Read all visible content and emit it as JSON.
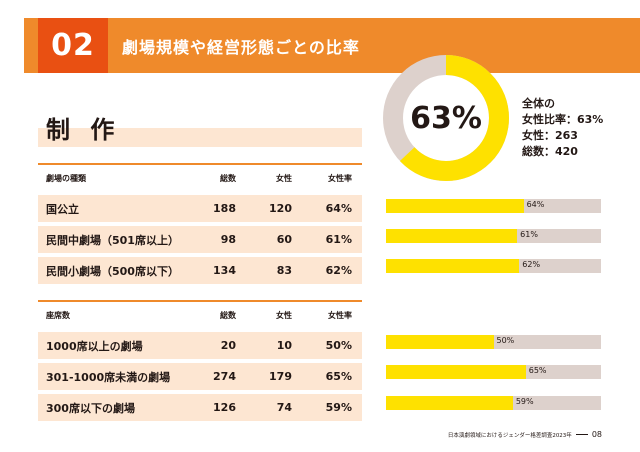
{
  "header": {
    "chapter_number": "02",
    "section_title": "劇場規模や経営形態ごとの比率",
    "brand_color": "#ef8a2b",
    "chapter_color": "#e95012"
  },
  "overall": {
    "ratio_label": "63%",
    "ratio_value": 0.63,
    "summary_lines": [
      "全体の",
      "女性比率：63%",
      "女性：263",
      "総数：420"
    ],
    "ring_fill_color": "#fee100",
    "ring_rest_color": "#ddd1cc"
  },
  "category_title": "制 作",
  "tables": [
    {
      "headers": [
        "劇場の種類",
        "総数",
        "女性",
        "女性率"
      ],
      "rows": [
        {
          "name": "国公立",
          "total": "188",
          "female": "120",
          "rate": "64%",
          "ratio": 0.64
        },
        {
          "name": "民間中劇場（501席以上）",
          "total": "98",
          "female": "60",
          "rate": "61%",
          "ratio": 0.61
        },
        {
          "name": "民間小劇場（500席以下）",
          "total": "134",
          "female": "83",
          "rate": "62%",
          "ratio": 0.62
        }
      ]
    },
    {
      "headers": [
        "座席数",
        "総数",
        "女性",
        "女性率"
      ],
      "rows": [
        {
          "name": "1000席以上の劇場",
          "total": "20",
          "female": "10",
          "rate": "50%",
          "ratio": 0.5
        },
        {
          "name": "301-1000席未満の劇場",
          "total": "274",
          "female": "179",
          "rate": "65%",
          "ratio": 0.65
        },
        {
          "name": "300席以下の劇場",
          "total": "126",
          "female": "74",
          "rate": "59%",
          "ratio": 0.59
        }
      ]
    }
  ],
  "footer": {
    "text": "日本演劇領域におけるジェンダー格差調査2023年",
    "page": "08"
  }
}
